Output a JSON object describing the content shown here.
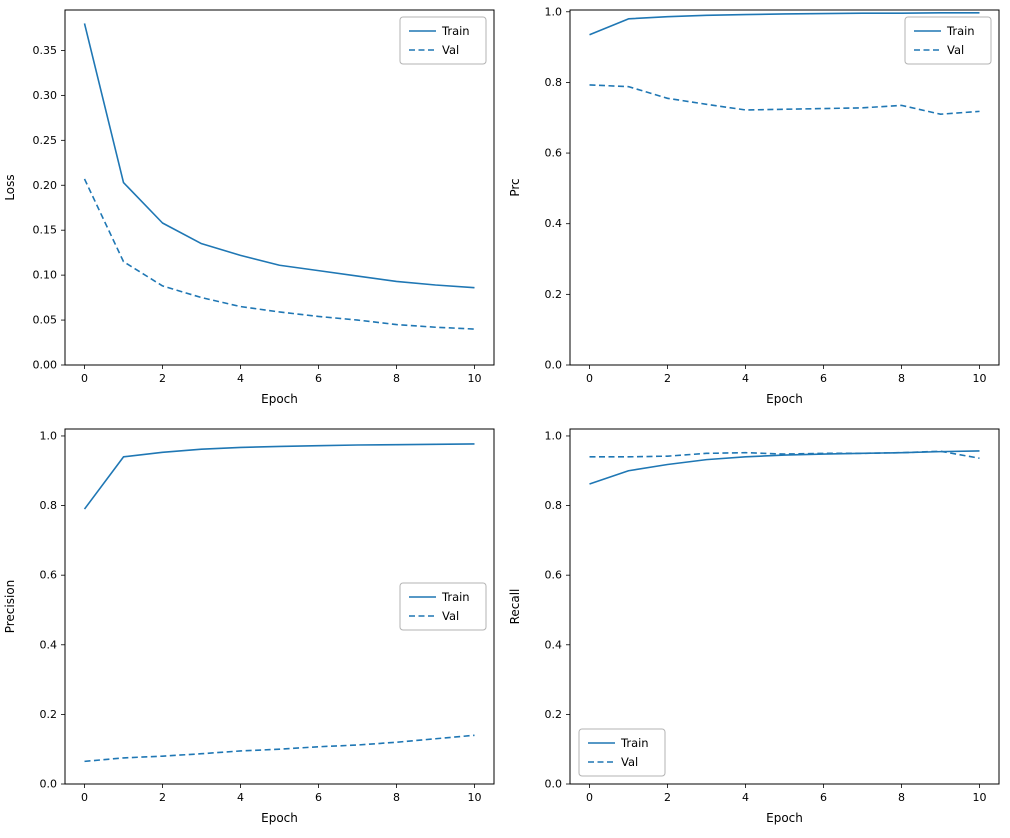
{
  "figure": {
    "background": "#ffffff",
    "accent_color": "#1f77b4",
    "axis_color": "#000000",
    "legend_border_color": "#b3b3b3"
  },
  "chart_data": [
    {
      "id": "loss",
      "type": "line",
      "title": "",
      "xlabel": "Epoch",
      "ylabel": "Loss",
      "grid": false,
      "x": [
        0,
        1,
        2,
        3,
        4,
        5,
        6,
        7,
        8,
        9,
        10
      ],
      "series": [
        {
          "name": "Train",
          "line_style": "solid",
          "color": "#1f77b4",
          "values": [
            0.38,
            0.203,
            0.158,
            0.135,
            0.122,
            0.111,
            0.105,
            0.099,
            0.093,
            0.089,
            0.086
          ]
        },
        {
          "name": "Val",
          "line_style": "dashed",
          "color": "#1f77b4",
          "values": [
            0.207,
            0.115,
            0.088,
            0.075,
            0.065,
            0.059,
            0.054,
            0.05,
            0.045,
            0.042,
            0.04
          ]
        }
      ],
      "xlim": [
        -0.5,
        10.5
      ],
      "ylim": [
        0,
        0.395
      ],
      "xticks": [
        0,
        2,
        4,
        6,
        8,
        10
      ],
      "xtick_labels": [
        "0",
        "2",
        "4",
        "6",
        "8",
        "10"
      ],
      "yticks": [
        0.0,
        0.05,
        0.1,
        0.15,
        0.2,
        0.25,
        0.3,
        0.35
      ],
      "ytick_labels": [
        "0.00",
        "0.05",
        "0.10",
        "0.15",
        "0.20",
        "0.25",
        "0.30",
        "0.35"
      ],
      "legend_position": "upper right"
    },
    {
      "id": "prc",
      "type": "line",
      "title": "",
      "xlabel": "Epoch",
      "ylabel": "Prc",
      "grid": false,
      "x": [
        0,
        1,
        2,
        3,
        4,
        5,
        6,
        7,
        8,
        9,
        10
      ],
      "series": [
        {
          "name": "Train",
          "line_style": "solid",
          "color": "#1f77b4",
          "values": [
            0.935,
            0.98,
            0.986,
            0.99,
            0.992,
            0.994,
            0.995,
            0.996,
            0.996,
            0.997,
            0.997
          ]
        },
        {
          "name": "Val",
          "line_style": "dashed",
          "color": "#1f77b4",
          "values": [
            0.793,
            0.788,
            0.755,
            0.738,
            0.722,
            0.724,
            0.726,
            0.728,
            0.735,
            0.71,
            0.718
          ]
        }
      ],
      "xlim": [
        -0.5,
        10.5
      ],
      "ylim": [
        0,
        1.005
      ],
      "xticks": [
        0,
        2,
        4,
        6,
        8,
        10
      ],
      "xtick_labels": [
        "0",
        "2",
        "4",
        "6",
        "8",
        "10"
      ],
      "yticks": [
        0.0,
        0.2,
        0.4,
        0.6,
        0.8,
        1.0
      ],
      "ytick_labels": [
        "0.0",
        "0.2",
        "0.4",
        "0.6",
        "0.8",
        "1.0"
      ],
      "legend_position": "upper right"
    },
    {
      "id": "precision",
      "type": "line",
      "title": "",
      "xlabel": "Epoch",
      "ylabel": "Precision",
      "grid": false,
      "x": [
        0,
        1,
        2,
        3,
        4,
        5,
        6,
        7,
        8,
        9,
        10
      ],
      "series": [
        {
          "name": "Train",
          "line_style": "solid",
          "color": "#1f77b4",
          "values": [
            0.79,
            0.94,
            0.953,
            0.962,
            0.967,
            0.97,
            0.972,
            0.974,
            0.975,
            0.976,
            0.977
          ]
        },
        {
          "name": "Val",
          "line_style": "dashed",
          "color": "#1f77b4",
          "values": [
            0.065,
            0.075,
            0.08,
            0.087,
            0.095,
            0.1,
            0.107,
            0.112,
            0.12,
            0.13,
            0.14
          ]
        }
      ],
      "xlim": [
        -0.5,
        10.5
      ],
      "ylim": [
        0,
        1.02
      ],
      "xticks": [
        0,
        2,
        4,
        6,
        8,
        10
      ],
      "xtick_labels": [
        "0",
        "2",
        "4",
        "6",
        "8",
        "10"
      ],
      "yticks": [
        0.0,
        0.2,
        0.4,
        0.6,
        0.8,
        1.0
      ],
      "ytick_labels": [
        "0.0",
        "0.2",
        "0.4",
        "0.6",
        "0.8",
        "1.0"
      ],
      "legend_position": "center right"
    },
    {
      "id": "recall",
      "type": "line",
      "title": "",
      "xlabel": "Epoch",
      "ylabel": "Recall",
      "grid": false,
      "x": [
        0,
        1,
        2,
        3,
        4,
        5,
        6,
        7,
        8,
        9,
        10
      ],
      "series": [
        {
          "name": "Train",
          "line_style": "solid",
          "color": "#1f77b4",
          "values": [
            0.862,
            0.9,
            0.918,
            0.932,
            0.94,
            0.945,
            0.948,
            0.95,
            0.952,
            0.955,
            0.957
          ]
        },
        {
          "name": "Val",
          "line_style": "dashed",
          "color": "#1f77b4",
          "values": [
            0.94,
            0.94,
            0.942,
            0.95,
            0.952,
            0.948,
            0.95,
            0.95,
            0.952,
            0.956,
            0.936
          ]
        }
      ],
      "xlim": [
        -0.5,
        10.5
      ],
      "ylim": [
        0,
        1.02
      ],
      "xticks": [
        0,
        2,
        4,
        6,
        8,
        10
      ],
      "xtick_labels": [
        "0",
        "2",
        "4",
        "6",
        "8",
        "10"
      ],
      "yticks": [
        0.0,
        0.2,
        0.4,
        0.6,
        0.8,
        1.0
      ],
      "ytick_labels": [
        "0.0",
        "0.2",
        "0.4",
        "0.6",
        "0.8",
        "1.0"
      ],
      "legend_position": "lower left"
    }
  ]
}
